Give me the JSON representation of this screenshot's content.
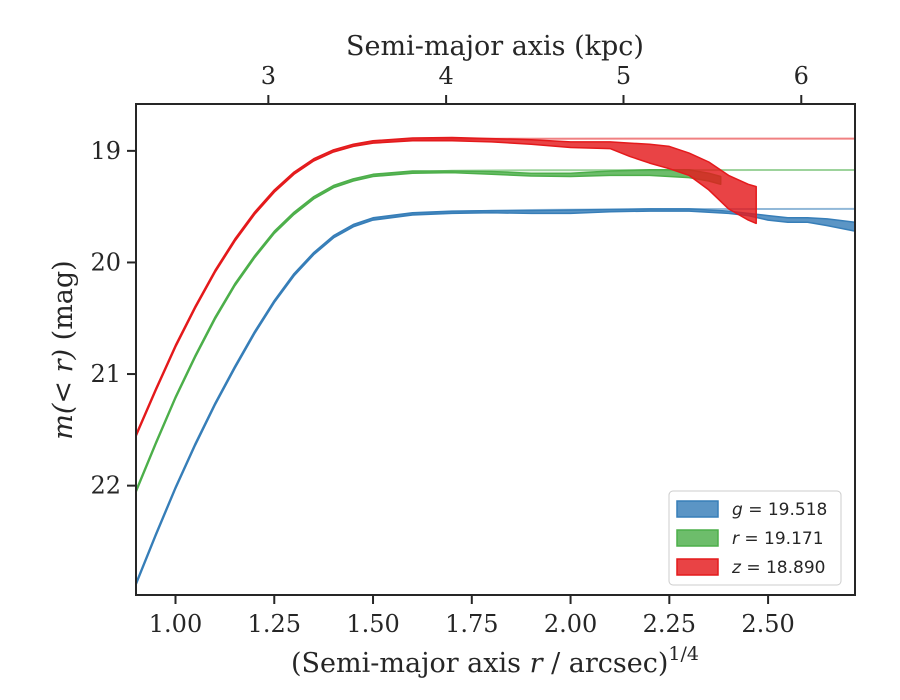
{
  "chart_data": {
    "type": "line",
    "xlabel": {
      "prefix": "(Semi-major axis ",
      "italic": "r",
      "suffix": " / arcsec)",
      "sup": "1/4"
    },
    "ylabel": {
      "prefix": "m",
      "italic_part": "(< r)",
      "suffix": " (mag)"
    },
    "top_xlabel": "Semi-major axis (kpc)",
    "xlim": [
      0.9,
      2.72
    ],
    "ylim": [
      22.98,
      18.58
    ],
    "y_inverted": true,
    "x_ticks": [
      1.0,
      1.25,
      1.5,
      1.75,
      2.0,
      2.25,
      2.5
    ],
    "x_tick_labels": [
      "1.00",
      "1.25",
      "1.50",
      "1.75",
      "2.00",
      "2.25",
      "2.50"
    ],
    "y_ticks": [
      19,
      20,
      21,
      22
    ],
    "y_tick_labels": [
      "19",
      "20",
      "21",
      "22"
    ],
    "top_ticks_kpc": [
      3,
      4,
      5,
      6
    ],
    "top_tick_labels": [
      "3",
      "4",
      "5",
      "6"
    ],
    "top_tick_x": [
      1.235,
      1.685,
      2.134,
      2.584
    ],
    "grid": false,
    "legend_position": "lower-right",
    "series": [
      {
        "name": "g",
        "legend_label": {
          "band": "g",
          "value": " = 19.518"
        },
        "color": "#377eb8",
        "total_mag": 19.518,
        "model": [
          [
            0.9,
            22.88
          ],
          [
            0.95,
            22.44
          ],
          [
            1.0,
            22.02
          ],
          [
            1.05,
            21.63
          ],
          [
            1.1,
            21.27
          ],
          [
            1.15,
            20.94
          ],
          [
            1.2,
            20.63
          ],
          [
            1.25,
            20.35
          ],
          [
            1.3,
            20.11
          ],
          [
            1.35,
            19.92
          ],
          [
            1.4,
            19.77
          ],
          [
            1.45,
            19.67
          ],
          [
            1.5,
            19.61
          ],
          [
            1.6,
            19.565
          ],
          [
            1.7,
            19.545
          ],
          [
            1.9,
            19.53
          ],
          [
            2.2,
            19.522
          ],
          [
            2.72,
            19.52
          ]
        ],
        "upper": [
          [
            0.9,
            22.87
          ],
          [
            0.95,
            22.43
          ],
          [
            1.0,
            22.01
          ],
          [
            1.05,
            21.62
          ],
          [
            1.1,
            21.26
          ],
          [
            1.15,
            20.93
          ],
          [
            1.2,
            20.62
          ],
          [
            1.25,
            20.34
          ],
          [
            1.3,
            20.1
          ],
          [
            1.35,
            19.91
          ],
          [
            1.4,
            19.76
          ],
          [
            1.45,
            19.66
          ],
          [
            1.5,
            19.6
          ],
          [
            1.6,
            19.555
          ],
          [
            1.7,
            19.54
          ],
          [
            1.8,
            19.535
          ],
          [
            1.9,
            19.535
          ],
          [
            2.0,
            19.53
          ],
          [
            2.1,
            19.525
          ],
          [
            2.2,
            19.52
          ],
          [
            2.3,
            19.52
          ],
          [
            2.4,
            19.54
          ],
          [
            2.45,
            19.56
          ],
          [
            2.5,
            19.58
          ],
          [
            2.55,
            19.6
          ],
          [
            2.6,
            19.6
          ],
          [
            2.65,
            19.61
          ],
          [
            2.72,
            19.64
          ]
        ],
        "lower": [
          [
            0.9,
            22.89
          ],
          [
            0.95,
            22.45
          ],
          [
            1.0,
            22.03
          ],
          [
            1.05,
            21.64
          ],
          [
            1.1,
            21.28
          ],
          [
            1.15,
            20.95
          ],
          [
            1.2,
            20.64
          ],
          [
            1.25,
            20.36
          ],
          [
            1.3,
            20.12
          ],
          [
            1.35,
            19.93
          ],
          [
            1.4,
            19.78
          ],
          [
            1.45,
            19.68
          ],
          [
            1.5,
            19.62
          ],
          [
            1.6,
            19.575
          ],
          [
            1.7,
            19.56
          ],
          [
            1.8,
            19.555
          ],
          [
            1.9,
            19.56
          ],
          [
            2.0,
            19.56
          ],
          [
            2.1,
            19.545
          ],
          [
            2.2,
            19.54
          ],
          [
            2.3,
            19.54
          ],
          [
            2.4,
            19.56
          ],
          [
            2.45,
            19.58
          ],
          [
            2.5,
            19.62
          ],
          [
            2.55,
            19.64
          ],
          [
            2.6,
            19.64
          ],
          [
            2.65,
            19.67
          ],
          [
            2.72,
            19.72
          ]
        ]
      },
      {
        "name": "r",
        "legend_label": {
          "band": "r",
          "value": " = 19.171"
        },
        "color": "#4daf4a",
        "total_mag": 19.171,
        "model": [
          [
            0.9,
            22.05
          ],
          [
            0.95,
            21.62
          ],
          [
            1.0,
            21.21
          ],
          [
            1.05,
            20.84
          ],
          [
            1.1,
            20.5
          ],
          [
            1.15,
            20.2
          ],
          [
            1.2,
            19.95
          ],
          [
            1.25,
            19.73
          ],
          [
            1.3,
            19.56
          ],
          [
            1.35,
            19.42
          ],
          [
            1.4,
            19.32
          ],
          [
            1.45,
            19.26
          ],
          [
            1.5,
            19.22
          ],
          [
            1.6,
            19.19
          ],
          [
            1.7,
            19.178
          ],
          [
            1.9,
            19.173
          ],
          [
            2.2,
            19.172
          ],
          [
            2.72,
            19.171
          ]
        ],
        "upper": [
          [
            0.9,
            22.04
          ],
          [
            0.95,
            21.61
          ],
          [
            1.0,
            21.2
          ],
          [
            1.05,
            20.83
          ],
          [
            1.1,
            20.49
          ],
          [
            1.15,
            20.19
          ],
          [
            1.2,
            19.94
          ],
          [
            1.25,
            19.72
          ],
          [
            1.3,
            19.55
          ],
          [
            1.35,
            19.41
          ],
          [
            1.4,
            19.31
          ],
          [
            1.45,
            19.25
          ],
          [
            1.5,
            19.21
          ],
          [
            1.6,
            19.18
          ],
          [
            1.7,
            19.18
          ],
          [
            1.8,
            19.185
          ],
          [
            1.9,
            19.2
          ],
          [
            2.0,
            19.2
          ],
          [
            2.1,
            19.18
          ],
          [
            2.2,
            19.17
          ],
          [
            2.3,
            19.17
          ],
          [
            2.35,
            19.2
          ],
          [
            2.38,
            19.23
          ]
        ],
        "lower": [
          [
            0.9,
            22.06
          ],
          [
            0.95,
            21.63
          ],
          [
            1.0,
            21.22
          ],
          [
            1.05,
            20.85
          ],
          [
            1.1,
            20.51
          ],
          [
            1.15,
            20.21
          ],
          [
            1.2,
            19.96
          ],
          [
            1.25,
            19.74
          ],
          [
            1.3,
            19.57
          ],
          [
            1.35,
            19.43
          ],
          [
            1.4,
            19.33
          ],
          [
            1.45,
            19.27
          ],
          [
            1.5,
            19.23
          ],
          [
            1.6,
            19.2
          ],
          [
            1.7,
            19.195
          ],
          [
            1.8,
            19.21
          ],
          [
            1.9,
            19.225
          ],
          [
            2.0,
            19.23
          ],
          [
            2.1,
            19.22
          ],
          [
            2.2,
            19.22
          ],
          [
            2.3,
            19.24
          ],
          [
            2.35,
            19.27
          ],
          [
            2.38,
            19.3
          ]
        ]
      },
      {
        "name": "z",
        "legend_label": {
          "band": "z",
          "value": " = 18.890"
        },
        "color": "#e41a1c",
        "total_mag": 18.89,
        "model": [
          [
            0.9,
            21.55
          ],
          [
            0.95,
            21.14
          ],
          [
            1.0,
            20.75
          ],
          [
            1.05,
            20.4
          ],
          [
            1.1,
            20.08
          ],
          [
            1.15,
            19.8
          ],
          [
            1.2,
            19.56
          ],
          [
            1.25,
            19.36
          ],
          [
            1.3,
            19.2
          ],
          [
            1.35,
            19.08
          ],
          [
            1.4,
            19.0
          ],
          [
            1.45,
            18.95
          ],
          [
            1.5,
            18.92
          ],
          [
            1.6,
            18.9
          ],
          [
            1.7,
            18.893
          ],
          [
            1.9,
            18.891
          ],
          [
            2.2,
            18.89
          ],
          [
            2.72,
            18.89
          ]
        ],
        "upper": [
          [
            0.9,
            21.54
          ],
          [
            0.95,
            21.13
          ],
          [
            1.0,
            20.74
          ],
          [
            1.05,
            20.39
          ],
          [
            1.1,
            20.07
          ],
          [
            1.15,
            19.79
          ],
          [
            1.2,
            19.55
          ],
          [
            1.25,
            19.35
          ],
          [
            1.3,
            19.19
          ],
          [
            1.35,
            19.07
          ],
          [
            1.4,
            18.99
          ],
          [
            1.45,
            18.94
          ],
          [
            1.5,
            18.91
          ],
          [
            1.6,
            18.885
          ],
          [
            1.7,
            18.88
          ],
          [
            1.8,
            18.89
          ],
          [
            1.9,
            18.9
          ],
          [
            2.0,
            18.92
          ],
          [
            2.1,
            18.92
          ],
          [
            2.15,
            18.93
          ],
          [
            2.2,
            18.94
          ],
          [
            2.25,
            18.96
          ],
          [
            2.3,
            19.02
          ],
          [
            2.35,
            19.1
          ],
          [
            2.4,
            19.22
          ],
          [
            2.45,
            19.3
          ],
          [
            2.47,
            19.32
          ]
        ],
        "lower": [
          [
            0.9,
            21.56
          ],
          [
            0.95,
            21.15
          ],
          [
            1.0,
            20.76
          ],
          [
            1.05,
            20.41
          ],
          [
            1.1,
            20.09
          ],
          [
            1.15,
            19.81
          ],
          [
            1.2,
            19.57
          ],
          [
            1.25,
            19.37
          ],
          [
            1.3,
            19.21
          ],
          [
            1.35,
            19.09
          ],
          [
            1.4,
            19.01
          ],
          [
            1.45,
            18.96
          ],
          [
            1.5,
            18.93
          ],
          [
            1.6,
            18.91
          ],
          [
            1.7,
            18.91
          ],
          [
            1.8,
            18.92
          ],
          [
            1.9,
            18.94
          ],
          [
            2.0,
            18.97
          ],
          [
            2.1,
            18.98
          ],
          [
            2.15,
            19.05
          ],
          [
            2.2,
            19.11
          ],
          [
            2.25,
            19.16
          ],
          [
            2.3,
            19.22
          ],
          [
            2.35,
            19.35
          ],
          [
            2.4,
            19.52
          ],
          [
            2.45,
            19.62
          ],
          [
            2.47,
            19.65
          ]
        ]
      }
    ]
  }
}
